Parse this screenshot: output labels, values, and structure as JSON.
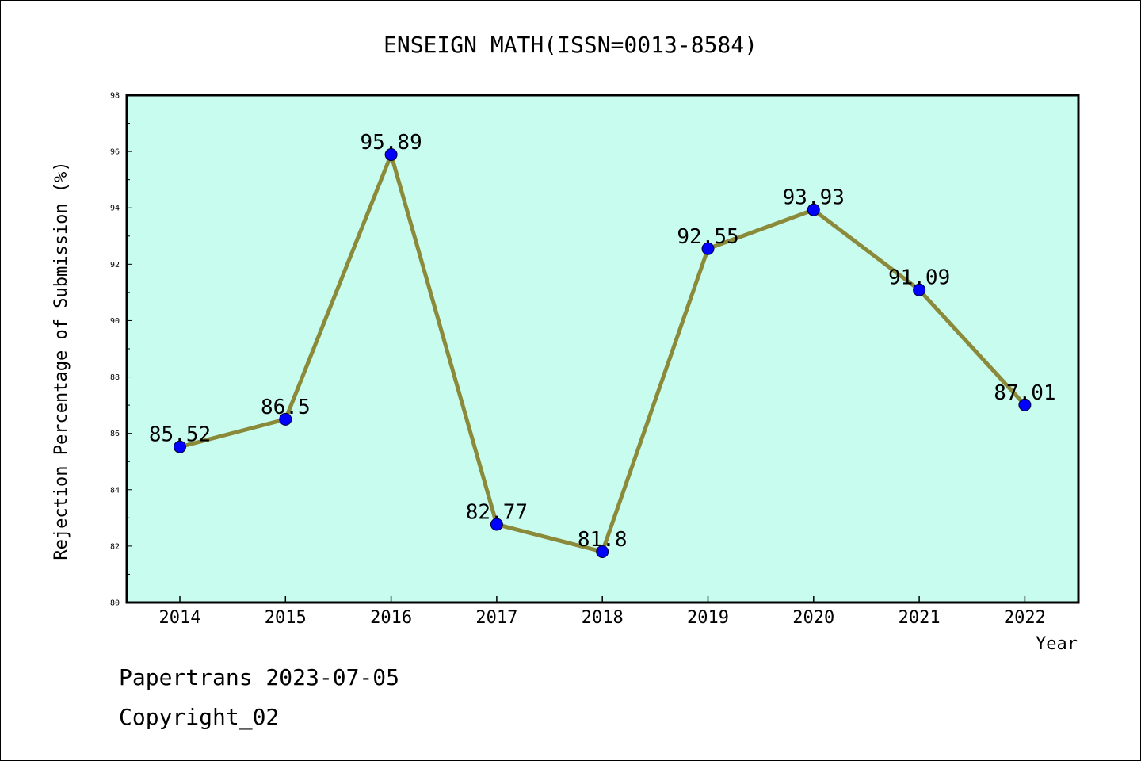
{
  "chart_data": {
    "type": "line",
    "title": "ENSEIGN MATH(ISSN=0013-8584)",
    "xlabel": "Year",
    "ylabel": "Rejection Percentage of Submission (%)",
    "ylim": [
      80,
      98
    ],
    "y_ticks": [
      80,
      82,
      84,
      86,
      88,
      90,
      92,
      94,
      96,
      98
    ],
    "categories": [
      "2014",
      "2015",
      "2016",
      "2017",
      "2018",
      "2019",
      "2020",
      "2021",
      "2022"
    ],
    "series": [
      {
        "values": [
          85.52,
          86.5,
          95.89,
          82.77,
          81.8,
          92.55,
          93.93,
          91.09,
          87.01
        ],
        "labels": [
          "85.52",
          "86.5",
          "95.89",
          "82.77",
          "81.8",
          "92.55",
          "93.93",
          "91.09",
          "87.01"
        ]
      }
    ],
    "grid": false,
    "colors": {
      "plot_background": "#c8fcee",
      "line": "#8b8a3a",
      "marker": "#0000ff"
    }
  },
  "footer": {
    "line1": "Papertrans 2023-07-05",
    "line2": "Copyright_02"
  }
}
